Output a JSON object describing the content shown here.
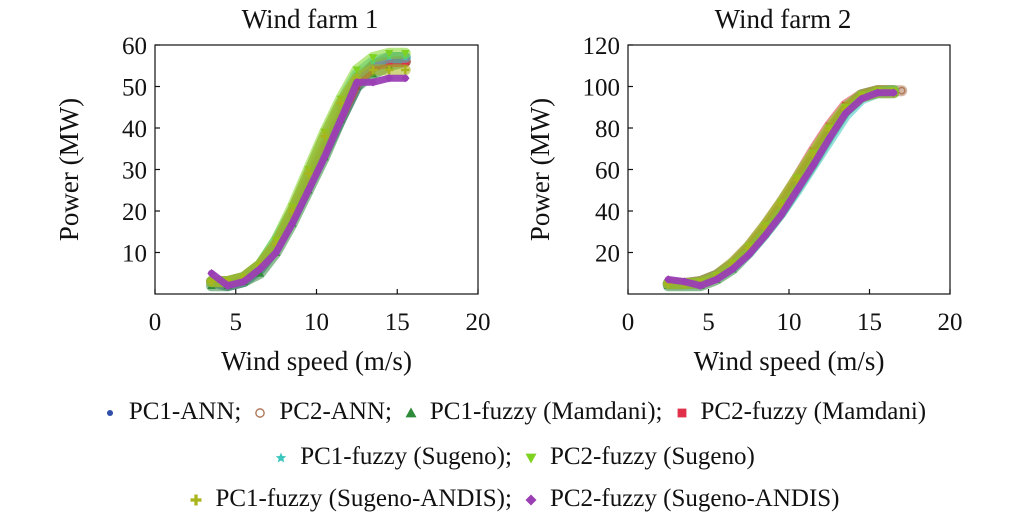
{
  "chart_data": [
    {
      "type": "scatter",
      "title": "Wind farm 1",
      "xlabel": "Wind speed (m/s)",
      "ylabel": "Power (MW)",
      "xlim": [
        0,
        20
      ],
      "ylim": [
        0,
        60
      ],
      "xticks": [
        0,
        5,
        10,
        15,
        20
      ],
      "yticks": [
        10,
        20,
        30,
        40,
        50,
        60
      ],
      "grid": false,
      "series": [
        {
          "name": "PC1-ANN",
          "marker": "dot",
          "color": "#2f4fa8",
          "x": [
            3.5,
            4.5,
            5.5,
            6.5,
            7.5,
            8.5,
            9.5,
            10.5,
            11.5,
            12.5,
            13.5,
            14.5,
            15.5
          ],
          "y": [
            3,
            2,
            3,
            6,
            11,
            18,
            26,
            34,
            42,
            50,
            55,
            57,
            57
          ]
        },
        {
          "name": "PC2-ANN",
          "marker": "circle",
          "color": "#b07a5a",
          "x": [
            3.5,
            4.5,
            5.5,
            6.5,
            7.5,
            8.5,
            9.5,
            10.5,
            11.5,
            12.5,
            13.5,
            14.5,
            15.5
          ],
          "y": [
            3,
            3,
            4,
            7,
            12,
            20,
            28,
            36,
            45,
            52,
            55,
            56,
            56
          ]
        },
        {
          "name": "PC1-fuzzy (Mamdani)",
          "marker": "triangle",
          "color": "#2e8b3a",
          "x": [
            3.5,
            4.5,
            5.5,
            6.5,
            7.5,
            8.5,
            9.5,
            10.5,
            11.5,
            12.5,
            13.5,
            14.5,
            15.5
          ],
          "y": [
            2,
            2,
            3,
            5,
            10,
            17,
            25,
            33,
            42,
            50,
            53,
            55,
            56
          ]
        },
        {
          "name": "PC2-fuzzy (Mamdani)",
          "marker": "square",
          "color": "#e0304a",
          "x": [
            3.5,
            4.5,
            5.5,
            6.5,
            7.5,
            8.5,
            9.5,
            10.5,
            11.5,
            12.5,
            13.5,
            14.5,
            15.5
          ],
          "y": [
            3,
            3,
            4,
            7,
            12,
            19,
            27,
            35,
            43,
            51,
            55,
            56,
            56
          ]
        },
        {
          "name": "PC1-fuzzy (Sugeno)",
          "marker": "star",
          "color": "#3cc6c0",
          "x": [
            3.5,
            4.5,
            5.5,
            6.5,
            7.5,
            8.5,
            9.5,
            10.5,
            11.5,
            12.5,
            13.5,
            14.5,
            15.5
          ],
          "y": [
            3,
            3,
            4,
            7,
            13,
            20,
            29,
            38,
            46,
            53,
            56,
            57,
            57
          ]
        },
        {
          "name": "PC2-fuzzy (Sugeno)",
          "marker": "triangle-down",
          "color": "#7ed321",
          "x": [
            3.5,
            4.5,
            5.5,
            6.5,
            7.5,
            8.5,
            9.5,
            10.5,
            11.5,
            12.5,
            13.5,
            14.5,
            15.5
          ],
          "y": [
            3,
            3,
            4,
            7,
            13,
            21,
            30,
            39,
            47,
            54,
            57,
            58,
            58
          ]
        },
        {
          "name": "PC1-fuzzy (Sugeno-ANDIS)",
          "marker": "cross",
          "color": "#a9b51c",
          "x": [
            3.5,
            4.5,
            5.5,
            6.5,
            7.5,
            8.5,
            9.5,
            10.5,
            11.5,
            12.5,
            13.5,
            14.5,
            15.5
          ],
          "y": [
            3,
            3,
            4,
            7,
            12,
            20,
            29,
            38,
            46,
            52,
            54,
            54,
            54
          ]
        },
        {
          "name": "PC2-fuzzy (Sugeno-ANDIS)",
          "marker": "diamond",
          "color": "#9b3fb5",
          "x": [
            3.5,
            4.5,
            5.5,
            6.5,
            7.5,
            8.5,
            9.5,
            10.5,
            11.5,
            12.5,
            13.5,
            14.5,
            15.5
          ],
          "y": [
            5,
            2,
            3,
            6,
            10,
            17,
            25,
            33,
            42,
            51,
            51,
            52,
            52
          ]
        }
      ]
    },
    {
      "type": "scatter",
      "title": "Wind farm 2",
      "xlabel": "Wind speed (m/s)",
      "ylabel": "Power (MW)",
      "xlim": [
        0,
        20
      ],
      "ylim": [
        0,
        120
      ],
      "xticks": [
        0,
        5,
        10,
        15,
        20
      ],
      "yticks": [
        20,
        40,
        60,
        80,
        100,
        120
      ],
      "grid": false,
      "series": [
        {
          "name": "PC1-ANN",
          "marker": "dot",
          "color": "#2f4fa8",
          "x": [
            2.5,
            3.5,
            4.5,
            5.5,
            6.5,
            7.5,
            8.5,
            9.5,
            10.5,
            11.5,
            12.5,
            13.5,
            14.5,
            15.5,
            16.5
          ],
          "y": [
            5,
            5,
            6,
            9,
            14,
            22,
            31,
            42,
            54,
            66,
            78,
            89,
            96,
            98,
            98
          ]
        },
        {
          "name": "PC2-ANN",
          "marker": "circle",
          "color": "#b07a5a",
          "x": [
            2.5,
            3.5,
            4.5,
            5.5,
            6.5,
            7.5,
            8.5,
            9.5,
            10.5,
            11.5,
            12.5,
            13.5,
            14.5,
            15.5,
            16.5,
            17.0
          ],
          "y": [
            5,
            5,
            5,
            8,
            13,
            21,
            30,
            41,
            53,
            65,
            77,
            88,
            95,
            98,
            98,
            98
          ]
        },
        {
          "name": "PC1-fuzzy (Mamdani)",
          "marker": "triangle",
          "color": "#2e8b3a",
          "x": [
            2.5,
            3.5,
            4.5,
            5.5,
            6.5,
            7.5,
            8.5,
            9.5,
            10.5,
            11.5,
            12.5,
            13.5,
            14.5,
            15.5,
            16.5
          ],
          "y": [
            4,
            4,
            4,
            7,
            12,
            20,
            29,
            39,
            51,
            63,
            76,
            88,
            95,
            97,
            97
          ]
        },
        {
          "name": "PC2-fuzzy (Mamdani)",
          "marker": "square",
          "color": "#e0304a",
          "x": [
            2.5,
            3.5,
            4.5,
            5.5,
            6.5,
            7.5,
            8.5,
            9.5,
            10.5,
            11.5,
            12.5,
            13.5,
            14.5,
            15.5,
            16.5
          ],
          "y": [
            5,
            5,
            6,
            9,
            15,
            23,
            33,
            44,
            56,
            69,
            81,
            91,
            96,
            98,
            98
          ]
        },
        {
          "name": "PC1-fuzzy (Sugeno)",
          "marker": "star",
          "color": "#3cc6c0",
          "x": [
            2.5,
            3.5,
            4.5,
            5.5,
            6.5,
            7.5,
            8.5,
            9.5,
            10.5,
            11.5,
            12.5,
            13.5,
            14.5,
            15.5,
            16.5
          ],
          "y": [
            5,
            5,
            5,
            8,
            13,
            20,
            29,
            39,
            50,
            62,
            74,
            86,
            94,
            97,
            98
          ]
        },
        {
          "name": "PC2-fuzzy (Sugeno)",
          "marker": "triangle-down",
          "color": "#7ed321",
          "x": [
            2.5,
            3.5,
            4.5,
            5.5,
            6.5,
            7.5,
            8.5,
            9.5,
            10.5,
            11.5,
            12.5,
            13.5,
            14.5,
            15.5,
            16.5
          ],
          "y": [
            5,
            5,
            6,
            9,
            15,
            23,
            33,
            44,
            56,
            68,
            80,
            90,
            96,
            98,
            98
          ]
        },
        {
          "name": "PC1-fuzzy (Sugeno-ANDIS)",
          "marker": "cross",
          "color": "#a9b51c",
          "x": [
            2.5,
            3.5,
            4.5,
            5.5,
            6.5,
            7.5,
            8.5,
            9.5,
            10.5,
            11.5,
            12.5,
            13.5,
            14.5,
            15.5,
            16.5
          ],
          "y": [
            5,
            5,
            5,
            8,
            14,
            22,
            32,
            43,
            55,
            67,
            79,
            89,
            95,
            97,
            97
          ]
        },
        {
          "name": "PC2-fuzzy (Sugeno-ANDIS)",
          "marker": "diamond",
          "color": "#9b3fb5",
          "x": [
            2.5,
            3.5,
            4.5,
            5.5,
            6.5,
            7.5,
            8.5,
            9.5,
            10.5,
            11.5,
            12.5,
            13.5,
            14.5,
            15.5,
            16.5
          ],
          "y": [
            7,
            6,
            4,
            7,
            12,
            19,
            28,
            38,
            50,
            62,
            75,
            87,
            94,
            97,
            97
          ]
        }
      ]
    }
  ],
  "legend": {
    "rows": [
      [
        {
          "label": "PC1-ANN",
          "sep": ";",
          "series": 0
        },
        {
          "label": "PC2-ANN",
          "sep": ";",
          "series": 1
        },
        {
          "label": "PC1-fuzzy (Mamdani)",
          "sep": ";",
          "series": 2
        },
        {
          "label": "PC2-fuzzy (Mamdani)",
          "sep": "",
          "series": 3
        }
      ],
      [
        {
          "label": "PC1-fuzzy (Sugeno)",
          "sep": ";",
          "series": 4
        },
        {
          "label": "PC2-fuzzy (Sugeno)",
          "sep": "",
          "series": 5
        }
      ],
      [
        {
          "label": "PC1-fuzzy (Sugeno-ANDIS)",
          "sep": ";",
          "series": 6
        },
        {
          "label": "PC2-fuzzy (Sugeno-ANDIS)",
          "sep": "",
          "series": 7
        }
      ]
    ]
  }
}
